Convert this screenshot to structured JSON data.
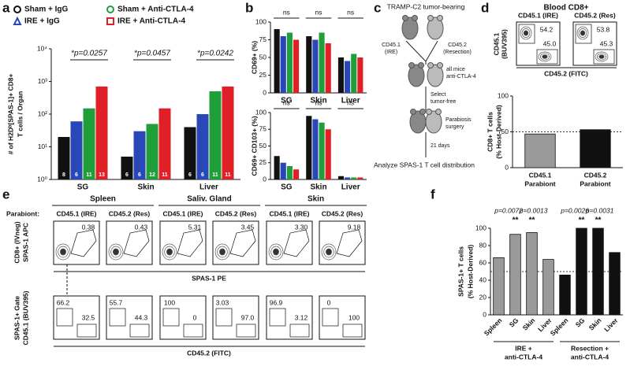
{
  "panel_labels": [
    "a",
    "b",
    "c",
    "d",
    "e",
    "f"
  ],
  "chart_data": [
    {
      "type": "bar",
      "log_scale": true,
      "y_label": [
        "# of H2Dᵇ[SPAS-1]+ CD8+",
        "T cells / Organ"
      ],
      "categories": [
        "SG",
        "Skin",
        "Liver"
      ],
      "ylim": [
        1,
        10000
      ],
      "yticks": [
        {
          "value": 1,
          "label": "10⁰"
        },
        {
          "value": 10,
          "label": "10¹"
        },
        {
          "value": 100,
          "label": "10²"
        },
        {
          "value": 1000,
          "label": "10³"
        },
        {
          "value": 10000,
          "label": "10⁴"
        }
      ],
      "series": [
        {
          "name": "Sham + IgG",
          "color": "#111111",
          "marker": "circle",
          "values": [
            20,
            5,
            40
          ],
          "n": [
            8,
            6,
            6
          ]
        },
        {
          "name": "IRE + IgG",
          "color": "#2a47b8",
          "marker": "triangle",
          "values": [
            60,
            30,
            100
          ],
          "n": [
            6,
            6,
            6
          ]
        },
        {
          "name": "Sham + Anti-CTLA-4",
          "color": "#1f9e3a",
          "marker": "circle",
          "values": [
            150,
            50,
            500
          ],
          "n": [
            11,
            12,
            11
          ]
        },
        {
          "name": "IRE + Anti-CTLA-4",
          "color": "#e01f26",
          "marker": "square",
          "values": [
            700,
            150,
            700
          ],
          "n": [
            13,
            11,
            11
          ]
        }
      ],
      "annotations": [
        "*p=0.0257",
        "*p=0.0457",
        "*p=0.0242"
      ]
    },
    {
      "type": "bar",
      "y_label": [
        "CD69+ (%)"
      ],
      "categories": [
        "SG",
        "Skin",
        "Liver"
      ],
      "ylim": [
        0,
        100
      ],
      "yticks": [
        0,
        25,
        50,
        75,
        100
      ],
      "series": [
        {
          "color": "#111111",
          "values": [
            90,
            80,
            50
          ]
        },
        {
          "color": "#2a47b8",
          "values": [
            80,
            75,
            45
          ]
        },
        {
          "color": "#1f9e3a",
          "values": [
            85,
            85,
            55
          ]
        },
        {
          "color": "#e01f26",
          "values": [
            75,
            70,
            50
          ]
        }
      ],
      "annotations": [
        "ns",
        "ns",
        "ns"
      ]
    },
    {
      "type": "bar",
      "y_label": [
        "CD69+ CD103+ (%)"
      ],
      "categories": [
        "SG",
        "Skin",
        "Liver"
      ],
      "ylim": [
        0,
        100
      ],
      "yticks": [
        0,
        25,
        50,
        75,
        100
      ],
      "series": [
        {
          "color": "#111111",
          "values": [
            35,
            95,
            5
          ]
        },
        {
          "color": "#2a47b8",
          "values": [
            25,
            90,
            3
          ]
        },
        {
          "color": "#1f9e3a",
          "values": [
            20,
            85,
            3
          ]
        },
        {
          "color": "#e01f26",
          "values": [
            15,
            75,
            3
          ]
        }
      ],
      "annotations": [
        "ns",
        "ns",
        "ns"
      ]
    },
    {
      "type": "bar",
      "y_label": [
        "CD8+ T cells",
        "(% Host-Derived)"
      ],
      "categories": [
        [
          "CD45.1",
          "Parabiont"
        ],
        [
          "CD45.2",
          "Parabiont"
        ]
      ],
      "values": [
        47,
        53
      ],
      "colors": [
        "#9a9a9a",
        "#111111"
      ],
      "ylim": [
        0,
        100
      ],
      "yticks": [
        0,
        50,
        100
      ],
      "reference_line": 50
    },
    {
      "type": "bar",
      "y_label": [
        "SPAS-1+ T cells",
        "(% Host-Derived)"
      ],
      "categories": [
        "Spleen",
        "SG",
        "Skin",
        "Liver",
        "Spleen",
        "SG",
        "Skin",
        "Liver"
      ],
      "values": [
        66,
        93,
        95,
        64,
        46,
        100,
        100,
        72
      ],
      "colors": [
        "#9a9a9a",
        "#9a9a9a",
        "#9a9a9a",
        "#9a9a9a",
        "#111111",
        "#111111",
        "#111111",
        "#111111"
      ],
      "ylim": [
        0,
        100
      ],
      "yticks": [
        0,
        20,
        40,
        60,
        80,
        100
      ],
      "reference_line": 50,
      "significance": [
        null,
        "**",
        "**",
        null,
        null,
        "**",
        "**",
        null
      ],
      "p_labels": [
        "p=0.0072",
        "p=0.0013",
        "p=0.0026",
        "p=0.0031"
      ],
      "groups": [
        [
          "IRE +",
          "anti-CTLA-4"
        ],
        [
          "Resection +",
          "anti-CTLA-4"
        ]
      ]
    }
  ],
  "c_diagram": {
    "title": "TRAMP-C2 tumor-bearing",
    "left_mouse": [
      "CD45.1",
      "(IRE)"
    ],
    "right_mouse": [
      "CD45.2",
      "(Resection)"
    ],
    "treatment": [
      "all mice",
      "anti-CTLA-4"
    ],
    "select": [
      "Select",
      "tumor-free"
    ],
    "surgery": [
      "Parabiosis",
      "surgery"
    ],
    "wait": "21 days",
    "analyze": "Analyze SPAS-1 T cell distribution"
  },
  "d_flow": {
    "title": "Blood CD8+",
    "y_axis": [
      "CD45.1",
      "(BUV395)"
    ],
    "x_axis": "CD45.2 (FITC)",
    "plots": [
      {
        "title": "CD45.1 (IRE)",
        "top": "54.2",
        "bottom": "45.0"
      },
      {
        "title": "CD45.2 (Res)",
        "top": "53.8",
        "bottom": "45.3"
      }
    ]
  },
  "e_flow": {
    "organs": [
      "Spleen",
      "Saliv. Gland",
      "Skin"
    ],
    "parabiont_label": "Parabiont:",
    "row1_y": [
      "CD8+ (IVneg)",
      "SPAS-1 APC"
    ],
    "row1_x": "SPAS-1 PE",
    "row2_y": [
      "SPAS-1+ Gate",
      "CD45.1 (BUV395)"
    ],
    "row2_x": "CD45.2 (FITC)",
    "plots": [
      {
        "title": "CD45.1 (IRE)",
        "gate": "0.38",
        "left": "66.2",
        "right": "32.5"
      },
      {
        "title": "CD45.2 (Res)",
        "gate": "0.43",
        "left": "55.7",
        "right": "44.3"
      },
      {
        "title": "CD45.1 (IRE)",
        "gate": "5.31",
        "left": "100",
        "right": "0"
      },
      {
        "title": "CD45.2 (Res)",
        "gate": "3.45",
        "left": "3.03",
        "right": "97.0"
      },
      {
        "title": "CD45.1 (IRE)",
        "gate": "3.30",
        "left": "96.9",
        "right": "3.12"
      },
      {
        "title": "CD45.2 (Res)",
        "gate": "9.18",
        "left": "0",
        "right": "100"
      }
    ]
  }
}
